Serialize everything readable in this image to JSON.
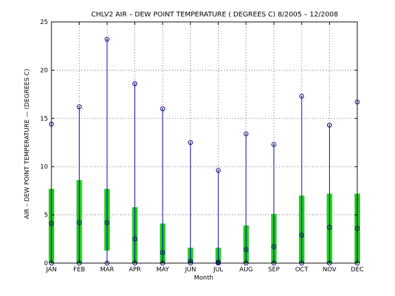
{
  "chart_data": {
    "type": "bar",
    "title": "CHLV2  AIR – DEW POINT TEMPERATURE ( DEGREES C) 8/2005 – 12/2008",
    "xlabel": "Month",
    "ylabel": "AIR – DEW POINT TEMPERATURE  —  (DEGREES C)",
    "categories": [
      "JAN",
      "FEB",
      "MAR",
      "APR",
      "MAY",
      "JUN",
      "JUL",
      "AUG",
      "SEP",
      "OCT",
      "NOV",
      "DEC"
    ],
    "ylim": [
      0,
      25
    ],
    "yticks": [
      "0",
      "5",
      "10",
      "15",
      "20",
      "25"
    ],
    "grid": true,
    "series": [
      {
        "stat": "max",
        "values": [
          14.4,
          16.2,
          23.2,
          18.6,
          16.0,
          12.5,
          9.6,
          13.4,
          12.3,
          17.3,
          14.3,
          16.7
        ]
      },
      {
        "stat": "iqr_upper",
        "values": [
          7.7,
          8.6,
          7.7,
          5.8,
          4.1,
          1.6,
          1.6,
          3.9,
          5.1,
          7.0,
          7.2,
          7.2
        ]
      },
      {
        "stat": "iqr_lower",
        "values": [
          0.0,
          0.0,
          1.3,
          0.0,
          0.0,
          0.0,
          0.0,
          0.0,
          0.0,
          0.0,
          0.0,
          0.0
        ]
      },
      {
        "stat": "median",
        "values": [
          4.1,
          4.2,
          4.2,
          2.5,
          1.1,
          0.2,
          0.1,
          1.4,
          1.7,
          2.9,
          3.7,
          3.6
        ]
      },
      {
        "stat": "min",
        "values": [
          0.0,
          0.0,
          0.0,
          0.0,
          0.0,
          0.0,
          0.0,
          0.0,
          0.0,
          0.0,
          0.0,
          0.0
        ]
      }
    ],
    "colors": {
      "range_line": "#0000aa",
      "iqr_bar": "#22cc22",
      "marker": "#000080",
      "grid": "#000000"
    }
  }
}
